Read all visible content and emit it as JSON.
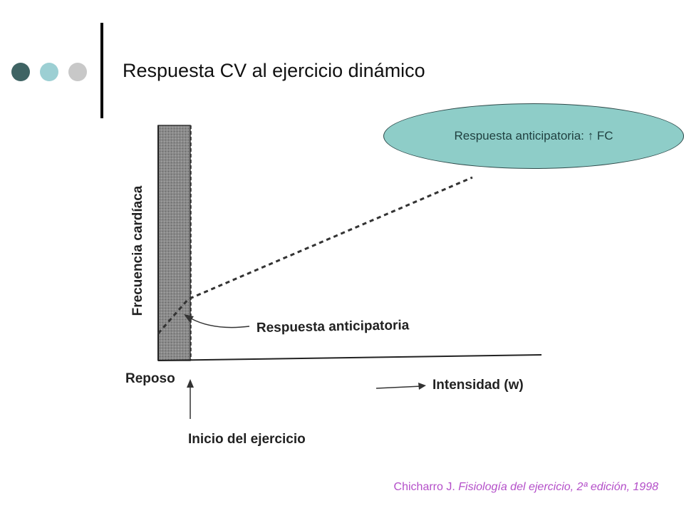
{
  "slide": {
    "title": "Respuesta CV al ejercicio dinámico",
    "bullet_colors": [
      "#3f6464",
      "#9ccfd3",
      "#c8c8c8"
    ]
  },
  "figure": {
    "y_axis_label": "Frecuencia cardíaca",
    "rest_label": "Reposo",
    "x_axis_label": "Intensidad (w)",
    "start_label": "Inicio del ejercicio",
    "annotation": "Respuesta anticipatoria"
  },
  "callout": {
    "text": "Respuesta anticipatoria: ↑ FC",
    "fill_color": "#8ecdc8"
  },
  "citation": {
    "author": "Chicharro J.",
    "work": "Fisiología del ejercicio, 2ª edición, 1998"
  }
}
